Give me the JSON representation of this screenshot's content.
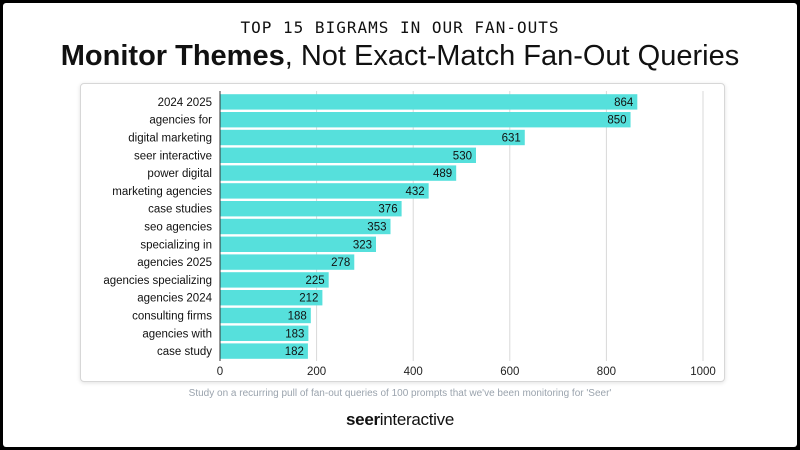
{
  "header": {
    "kicker": "TOP 15 BIGRAMS IN OUR FAN-OUTS",
    "title_bold": "Monitor Themes",
    "title_rest": ", Not Exact-Match Fan-Out Queries"
  },
  "footer": {
    "note": "Study on a recurring pull of fan-out queries of 100 prompts that we've been monitoring for 'Seer'",
    "brand_bold": "seer",
    "brand_rest": "interactive"
  },
  "chart_data": {
    "type": "bar",
    "orientation": "horizontal",
    "title": "",
    "xlabel": "",
    "ylabel": "",
    "categories": [
      "2024 2025",
      "agencies for",
      "digital marketing",
      "seer interactive",
      "power digital",
      "marketing agencies",
      "case studies",
      "seo agencies",
      "specializing in",
      "agencies 2025",
      "agencies specializing",
      "agencies 2024",
      "consulting firms",
      "agencies with",
      "case study"
    ],
    "values": [
      864,
      850,
      631,
      530,
      489,
      432,
      376,
      353,
      323,
      278,
      225,
      212,
      188,
      183,
      182
    ],
    "xlim": [
      0,
      1000
    ],
    "xticks": [
      0,
      200,
      400,
      600,
      800,
      1000
    ],
    "grid": true,
    "legend": "none",
    "bar_color": "#56e0dc"
  }
}
